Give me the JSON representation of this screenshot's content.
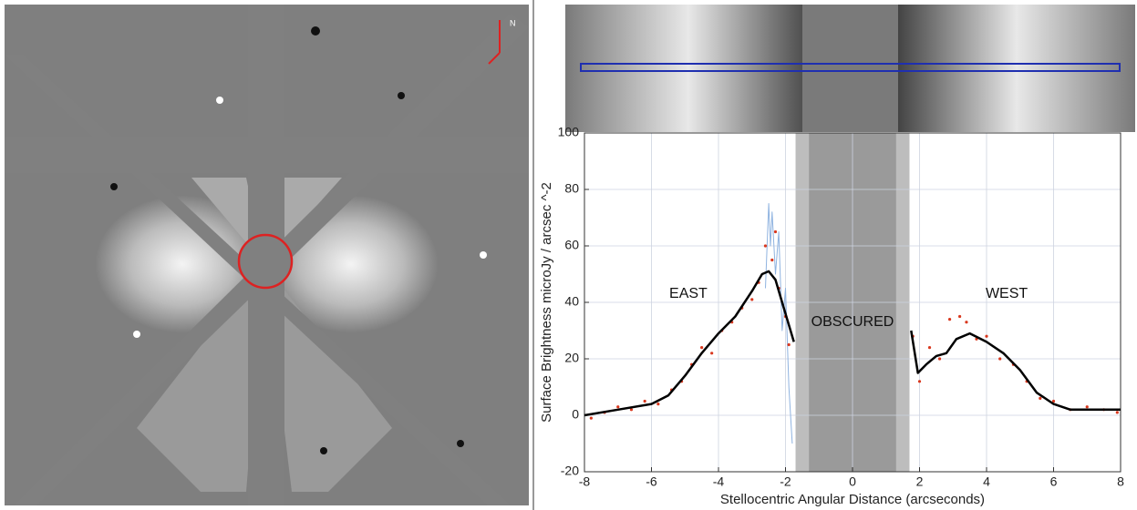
{
  "left_image": {
    "compass_label": "N"
  },
  "chart_data": {
    "type": "line",
    "xlabel": "Stellocentric Angular Distance (arcseconds)",
    "ylabel": "Surface Brightness microJy / arcsec ^-2",
    "xlim": [
      -8,
      8
    ],
    "xticks": [
      -8,
      -6,
      -4,
      -2,
      0,
      2,
      4,
      6,
      8
    ],
    "ylim": [
      -20,
      100
    ],
    "yticks": [
      -20,
      0,
      20,
      40,
      60,
      80,
      100
    ],
    "grid": true,
    "shaded_regions": [
      {
        "from": -1.7,
        "to": 1.7,
        "color": "#bdbdbd"
      },
      {
        "from": -1.3,
        "to": 1.3,
        "color": "#9a9a9a"
      }
    ],
    "annotations": [
      {
        "text": "EAST",
        "x": -4.9,
        "y": 43
      },
      {
        "text": "WEST",
        "x": 4.6,
        "y": 43
      },
      {
        "text": "OBSCURED",
        "x": 0,
        "y": 33
      }
    ],
    "series": [
      {
        "mode": "line",
        "color": "#8fb3e0",
        "width": 1,
        "x": [
          -2.6,
          -2.5,
          -2.45,
          -2.4,
          -2.3,
          -2.2,
          -2.1,
          -2.0,
          -1.9,
          -1.8
        ],
        "values": [
          45,
          75,
          60,
          72,
          50,
          65,
          30,
          45,
          10,
          -10
        ]
      },
      {
        "mode": "points",
        "color": "#d9381e",
        "x": [
          -7.8,
          -7.4,
          -7,
          -6.6,
          -6.2,
          -5.8,
          -5.4,
          -5.1,
          -4.8,
          -4.5,
          -4.2,
          -3.9,
          -3.6,
          -3.3,
          -3.0,
          -2.8,
          -2.6,
          -2.4,
          -2.3,
          -2.2,
          -2.0,
          -1.9,
          1.8,
          2.0,
          2.3,
          2.6,
          2.9,
          3.2,
          3.4,
          3.7,
          4.0,
          4.4,
          4.8,
          5.2,
          5.6,
          6.0,
          6.5,
          7.0,
          7.5,
          7.9
        ],
        "values": [
          -1,
          1,
          3,
          2,
          5,
          4,
          9,
          12,
          18,
          24,
          22,
          30,
          33,
          38,
          41,
          47,
          60,
          55,
          65,
          45,
          35,
          25,
          28,
          12,
          24,
          20,
          34,
          35,
          33,
          27,
          28,
          20,
          18,
          12,
          6,
          5,
          2,
          3,
          2,
          1
        ]
      },
      {
        "mode": "line",
        "color": "#000000",
        "width": 2.5,
        "x": [
          -8,
          -7,
          -6,
          -5.5,
          -5,
          -4.5,
          -4,
          -3.5,
          -3,
          -2.7,
          -2.5,
          -2.3,
          -2.1,
          -1.9,
          -1.75,
          null,
          1.75,
          1.95,
          2.2,
          2.5,
          2.8,
          3.1,
          3.5,
          4,
          4.5,
          5,
          5.5,
          6,
          6.5,
          7,
          8
        ],
        "values": [
          0,
          2,
          4,
          7,
          14,
          22,
          29,
          35,
          44,
          50,
          51,
          48,
          40,
          32,
          26,
          null,
          30,
          15,
          18,
          21,
          22,
          27,
          29,
          26,
          22,
          16,
          8,
          4,
          2,
          2,
          2
        ]
      }
    ]
  }
}
